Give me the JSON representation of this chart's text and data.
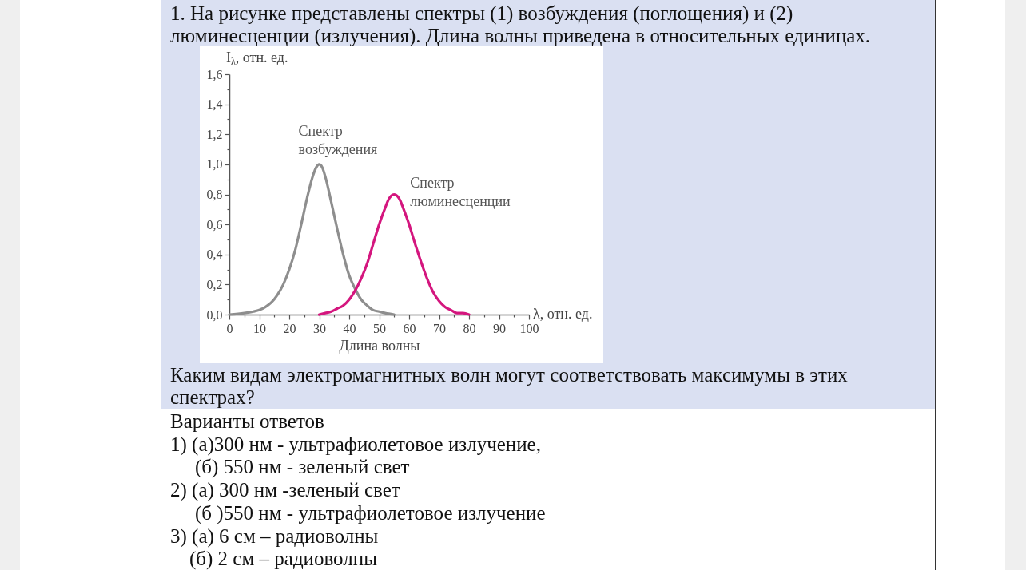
{
  "chart_data": {
    "type": "line",
    "title": "1. На рисунке представлены спектры (1) возбуждения (поглощения) и (2) люминесценции (излучения). Длина волны приведена в относительных единицах.",
    "xlabel": "Длина волны",
    "ylabel": "I$_{λ}$, отн. ед.",
    "annotations": [
      "λ, отн. ед.",
      "Каким видам электромагнитных волн могут соответствовать максимумы в этих спектрах?",
      "Варианты ответов",
      "1) (а)300 нм - ультрафиолетовое излучение,",
      "(б) 550 нм - зеленый свет",
      "2) (а) 300 нм -зеленый свет",
      "(б )550 нм - ультрафиолетовое излучение",
      "3) (а) 6 см – радиоволны",
      "(б) 2 см – радиоволны"
    ],
    "xlim": [
      0,
      100
    ],
    "xticks": [
      0,
      {
        "value": 5,
        "label": null
      },
      10,
      {
        "value": 15,
        "label": null
      },
      20,
      {
        "value": 25,
        "label": null
      },
      30,
      {
        "value": 35,
        "label": null
      },
      40,
      {
        "value": 45,
        "label": null
      },
      50,
      {
        "value": 55,
        "label": null
      },
      60,
      {
        "value": 65,
        "label": null
      },
      70,
      {
        "value": 75,
        "label": null
      },
      80,
      {
        "value": 85,
        "label": null
      },
      90,
      {
        "value": 95,
        "label": null
      },
      100
    ],
    "ylim": [
      0,
      1.6
    ],
    "yticks": [
      {
        "value": 0,
        "label": "0,0"
      },
      {
        "value": 0.1,
        "label": null
      },
      {
        "value": 0.2,
        "label": "0,2"
      },
      {
        "value": 0.3,
        "label": null
      },
      {
        "value": 0.4,
        "label": "0,4"
      },
      {
        "value": 0.5,
        "label": null
      },
      {
        "value": 0.6,
        "label": "0,6"
      },
      {
        "value": 0.7,
        "label": null
      },
      {
        "value": 0.8,
        "label": "0,8"
      },
      {
        "value": 0.9,
        "label": null
      },
      {
        "value": 1,
        "label": "1,0"
      },
      {
        "value": 1.1,
        "label": null
      },
      {
        "value": 1.2,
        "label": "1,2"
      },
      {
        "value": 1.3,
        "label": null
      },
      {
        "value": 1.4,
        "label": "1,4"
      },
      {
        "value": 1.5,
        "label": null
      },
      {
        "value": 1.6,
        "label": "1,6"
      }
    ],
    "series": [
      {
        "name": "Спектр возбуждения",
        "color": "#8e8e8e",
        "x": [
          0,
          5,
          8,
          10,
          12,
          14,
          16,
          18,
          20,
          22,
          24,
          26,
          28,
          29,
          30,
          31,
          32,
          34,
          36,
          38,
          40,
          42,
          44,
          46,
          48,
          50,
          52,
          55
        ],
        "values": [
          0,
          0.01,
          0.02,
          0.03,
          0.05,
          0.08,
          0.13,
          0.2,
          0.3,
          0.43,
          0.6,
          0.78,
          0.93,
          0.98,
          1,
          0.98,
          0.92,
          0.75,
          0.57,
          0.4,
          0.26,
          0.17,
          0.1,
          0.06,
          0.03,
          0.02,
          0.01,
          0
        ]
      },
      {
        "name": "Спектр люминесценции",
        "color": "#d4167e",
        "x": [
          30,
          32,
          34,
          36,
          38,
          40,
          42,
          44,
          46,
          48,
          50,
          52,
          53,
          54,
          55,
          56,
          57,
          58,
          60,
          62,
          64,
          66,
          68,
          70,
          72,
          74,
          76,
          78,
          80
        ],
        "values": [
          0,
          0.01,
          0.02,
          0.04,
          0.06,
          0.1,
          0.16,
          0.24,
          0.34,
          0.47,
          0.6,
          0.71,
          0.76,
          0.79,
          0.8,
          0.79,
          0.76,
          0.71,
          0.6,
          0.47,
          0.35,
          0.24,
          0.15,
          0.09,
          0.05,
          0.03,
          0.01,
          0.01,
          0
        ]
      }
    ]
  }
}
